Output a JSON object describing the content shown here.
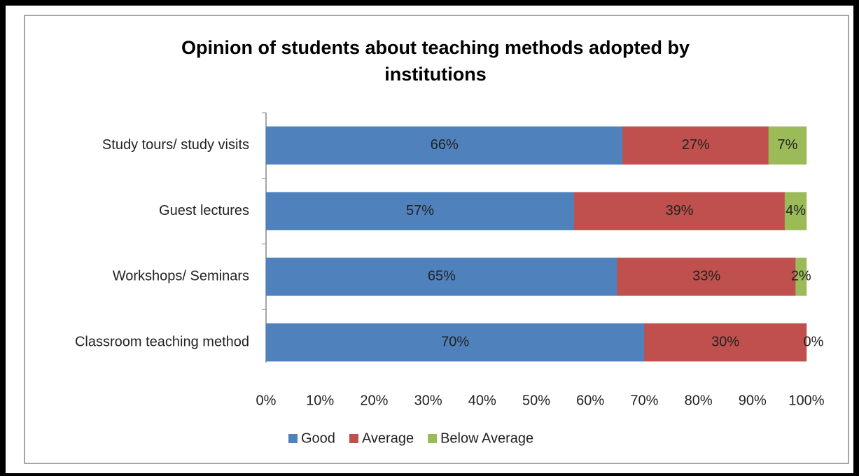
{
  "chart_data": {
    "type": "stacked_bar_horizontal",
    "title": [
      "Opinion of students about teaching methods adopted by",
      "institutions"
    ],
    "categories": [
      "Study tours/ study visits",
      "Guest lectures",
      "Workshops/ Seminars",
      "Classroom teaching method"
    ],
    "series": [
      {
        "name": "Good",
        "color": "#4f81bd",
        "values": [
          66,
          57,
          65,
          70
        ],
        "value_labels": [
          "66%",
          "57%",
          "65%",
          "70%"
        ]
      },
      {
        "name": "Average",
        "color": "#c0504d",
        "values": [
          27,
          39,
          33,
          30
        ],
        "value_labels": [
          "27%",
          "39%",
          "33%",
          "30%"
        ]
      },
      {
        "name": "Below Average",
        "color": "#9bbb59",
        "values": [
          7,
          4,
          2,
          0
        ],
        "value_labels": [
          "7%",
          "4%",
          "2%",
          "0%"
        ]
      }
    ],
    "xlim": [
      0,
      100
    ],
    "xticks": [
      {
        "value": 0,
        "label": "0%"
      },
      {
        "value": 10,
        "label": "10%"
      },
      {
        "value": 20,
        "label": "20%"
      },
      {
        "value": 30,
        "label": "30%"
      },
      {
        "value": 40,
        "label": "40%"
      },
      {
        "value": 50,
        "label": "50%"
      },
      {
        "value": 60,
        "label": "60%"
      },
      {
        "value": 70,
        "label": "70%"
      },
      {
        "value": 80,
        "label": "80%"
      },
      {
        "value": 90,
        "label": "90%"
      },
      {
        "value": 100,
        "label": "100%"
      }
    ],
    "legend": "bottom"
  }
}
